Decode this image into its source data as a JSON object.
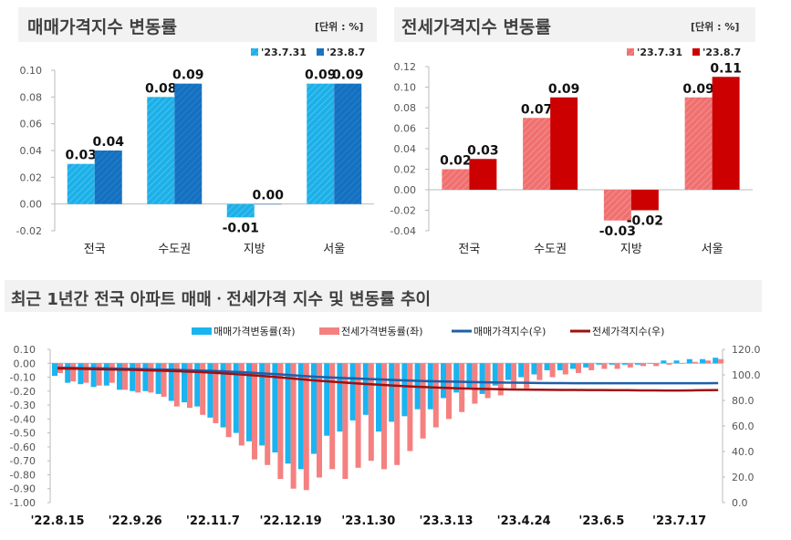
{
  "chart_data": [
    {
      "type": "bar",
      "title": "매매가격지수 변동률",
      "unit_label": "[단위 : %]",
      "categories": [
        "전국",
        "수도권",
        "지방",
        "서울"
      ],
      "series": [
        {
          "name": "'23.7.31",
          "values": [
            0.03,
            0.08,
            -0.01,
            0.09
          ],
          "color": "#1cb0e8"
        },
        {
          "name": "'23.8.7",
          "values": [
            0.04,
            0.09,
            0.0,
            0.09
          ],
          "color": "#1570c0"
        }
      ],
      "ylim": [
        -0.02,
        0.1
      ],
      "yticks": [
        "0.10",
        "0.08",
        "0.06",
        "0.04",
        "0.02",
        "0.00",
        "-0.02"
      ],
      "legend": "top-right"
    },
    {
      "type": "bar",
      "title": "전세가격지수 변동률",
      "unit_label": "[단위 : %]",
      "categories": [
        "전국",
        "수도권",
        "지방",
        "서울"
      ],
      "series": [
        {
          "name": "'23.7.31",
          "values": [
            0.02,
            0.07,
            -0.03,
            0.09
          ],
          "color": "#f07070"
        },
        {
          "name": "'23.8.7",
          "values": [
            0.03,
            0.09,
            -0.02,
            0.11
          ],
          "color": "#cc0000"
        }
      ],
      "ylim": [
        -0.04,
        0.12
      ],
      "yticks": [
        "0.12",
        "0.10",
        "0.08",
        "0.06",
        "0.04",
        "0.02",
        "0.00",
        "-0.02",
        "-0.04"
      ],
      "legend": "top-right"
    },
    {
      "type": "bar+line",
      "title": "최근 1년간 전국 아파트 매매ㆍ전세가격 지수 및 변동률 추이",
      "xticks": [
        "'22.8.15",
        "'22.9.26",
        "'22.11.7",
        "'22.12.19",
        "'23.1.30",
        "'23.3.13",
        "'23.4.24",
        "'23.6.5",
        "'23.7.17"
      ],
      "ylim_left": [
        -1.0,
        0.1
      ],
      "ylim_right": [
        0.0,
        120.0
      ],
      "yticks_left": [
        "0.10",
        "0.00",
        "-0.10",
        "-0.20",
        "-0.30",
        "-0.40",
        "-0.50",
        "-0.60",
        "-0.70",
        "-0.80",
        "-0.90",
        "-1.00"
      ],
      "yticks_right": [
        "120.0",
        "100.0",
        "80.0",
        "60.0",
        "40.0",
        "20.0",
        "0.0"
      ],
      "legend": "top",
      "series": [
        {
          "name": "매매가격변동률(좌)",
          "type": "bar",
          "axis": "left",
          "color": "#1ab4f0",
          "values": [
            -0.09,
            -0.14,
            -0.15,
            -0.17,
            -0.16,
            -0.19,
            -0.2,
            -0.2,
            -0.22,
            -0.27,
            -0.28,
            -0.31,
            -0.39,
            -0.46,
            -0.5,
            -0.56,
            -0.59,
            -0.64,
            -0.72,
            -0.76,
            -0.65,
            -0.52,
            -0.49,
            -0.41,
            -0.37,
            -0.49,
            -0.42,
            -0.38,
            -0.33,
            -0.33,
            -0.25,
            -0.21,
            -0.18,
            -0.22,
            -0.16,
            -0.12,
            -0.1,
            -0.08,
            -0.05,
            -0.05,
            -0.04,
            -0.03,
            -0.01,
            -0.01,
            -0.01,
            -0.01,
            0.0,
            0.02,
            0.02,
            0.03,
            0.03,
            0.04
          ]
        },
        {
          "name": "전세가격변동률(좌)",
          "type": "bar",
          "axis": "left",
          "color": "#f58080",
          "values": [
            -0.07,
            -0.13,
            -0.14,
            -0.16,
            -0.14,
            -0.19,
            -0.21,
            -0.21,
            -0.24,
            -0.31,
            -0.32,
            -0.37,
            -0.43,
            -0.53,
            -0.59,
            -0.69,
            -0.73,
            -0.83,
            -0.9,
            -0.91,
            -0.82,
            -0.76,
            -0.83,
            -0.75,
            -0.7,
            -0.76,
            -0.73,
            -0.63,
            -0.54,
            -0.46,
            -0.4,
            -0.35,
            -0.29,
            -0.25,
            -0.23,
            -0.18,
            -0.18,
            -0.12,
            -0.1,
            -0.08,
            -0.07,
            -0.05,
            -0.04,
            -0.04,
            -0.03,
            -0.02,
            -0.02,
            -0.01,
            0.0,
            0.01,
            0.02,
            0.03
          ]
        },
        {
          "name": "매매가격지수(우)",
          "type": "line",
          "axis": "right",
          "color": "#1f5fa8",
          "values": [
            105.6,
            105.5,
            105.3,
            105.2,
            105.0,
            104.8,
            104.6,
            104.4,
            104.2,
            104.0,
            103.7,
            103.4,
            103.1,
            102.7,
            102.2,
            101.7,
            101.1,
            100.5,
            99.8,
            99.1,
            98.5,
            98.0,
            97.6,
            97.2,
            96.8,
            96.4,
            96.0,
            95.6,
            95.3,
            95.0,
            94.8,
            94.6,
            94.4,
            94.2,
            94.0,
            93.9,
            93.8,
            93.7,
            93.6,
            93.6,
            93.5,
            93.5,
            93.5,
            93.5,
            93.5,
            93.5,
            93.5,
            93.5,
            93.5,
            93.5,
            93.5,
            93.6
          ]
        },
        {
          "name": "전세가격지수(우)",
          "type": "line",
          "axis": "right",
          "color": "#a01010",
          "values": [
            105.0,
            104.9,
            104.7,
            104.5,
            104.3,
            104.1,
            103.9,
            103.6,
            103.3,
            103.0,
            102.6,
            102.2,
            101.7,
            101.1,
            100.4,
            99.7,
            99.0,
            98.2,
            97.3,
            96.4,
            95.5,
            94.8,
            94.1,
            93.4,
            92.8,
            92.2,
            91.6,
            91.1,
            90.6,
            90.2,
            89.8,
            89.5,
            89.2,
            89.0,
            88.8,
            88.6,
            88.5,
            88.4,
            88.3,
            88.2,
            88.2,
            88.1,
            88.1,
            88.0,
            88.0,
            87.9,
            87.9,
            87.8,
            87.8,
            87.9,
            88.0,
            88.1
          ]
        }
      ]
    }
  ]
}
